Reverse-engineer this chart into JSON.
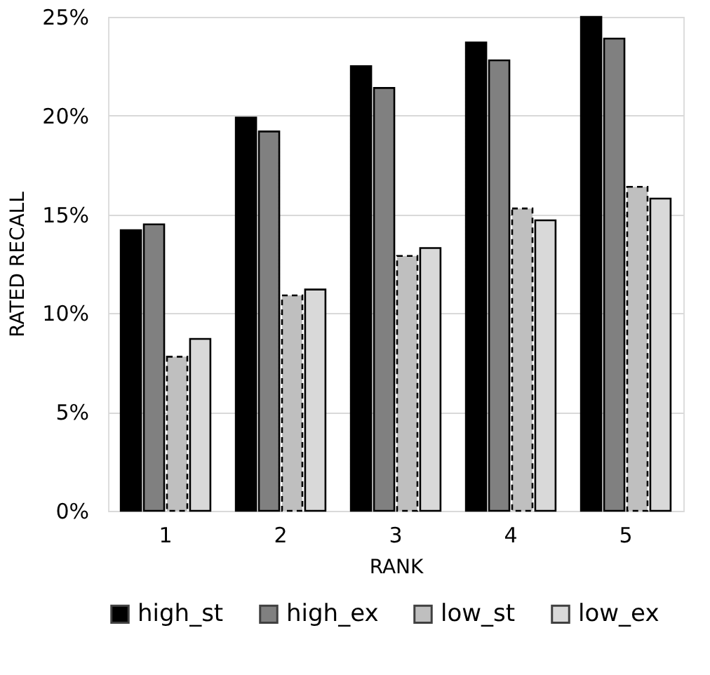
{
  "chart_data": {
    "type": "bar",
    "xlabel": "RANK",
    "ylabel": "RATED RECALL",
    "categories": [
      "1",
      "2",
      "3",
      "4",
      "5"
    ],
    "series": [
      {
        "name": "high_st",
        "color": "#000000",
        "values": [
          14.2,
          19.9,
          22.5,
          23.7,
          25.0
        ]
      },
      {
        "name": "high_ex",
        "color": "#808080",
        "values": [
          14.5,
          19.2,
          21.4,
          22.8,
          23.9
        ]
      },
      {
        "name": "low_st",
        "color": "#bfbfbf",
        "line_style": "dashed",
        "values": [
          7.8,
          10.9,
          12.9,
          15.3,
          16.4
        ]
      },
      {
        "name": "low_ex",
        "color": "#d9d9d9",
        "values": [
          8.7,
          11.2,
          13.3,
          14.7,
          15.8
        ]
      }
    ],
    "ylim": [
      0,
      25
    ],
    "yticks": [
      {
        "value": 0,
        "label": "0%"
      },
      {
        "value": 5,
        "label": "5%"
      },
      {
        "value": 10,
        "label": "10%"
      },
      {
        "value": 15,
        "label": "15%"
      },
      {
        "value": 20,
        "label": "20%"
      },
      {
        "value": 25,
        "label": "25%"
      }
    ],
    "grid": "y",
    "legend": "bottom"
  }
}
